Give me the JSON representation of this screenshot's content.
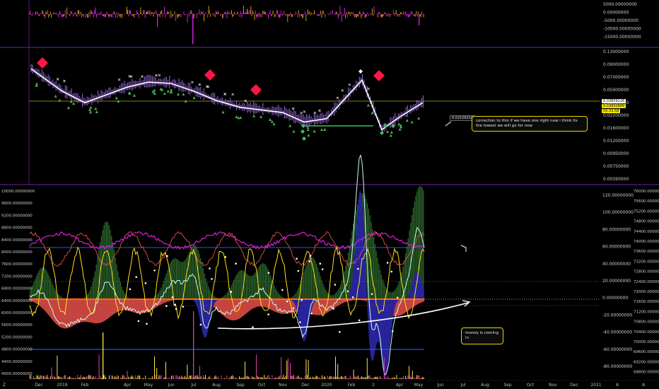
{
  "top_panel": {
    "y_ticks": [
      "5000.00000000",
      "0.00000000",
      "-5000.00000000",
      "-10000.00000000",
      "-15000.00000000"
    ]
  },
  "price_panel": {
    "y_ticks": [
      "0.13000000",
      "0.09000000",
      "0.07000000",
      "0.05000000",
      "0.03000000",
      "0.02200000",
      "0.01600000",
      "0.01200000",
      "0.00950000",
      "0.00750000",
      "0.00590000"
    ],
    "last_price_label": "0.03859126",
    "ma_price_label": "0.03850889",
    "countdown_label": "03:33:58",
    "measure_label": "0.02106316"
  },
  "indicator_panel": {
    "left_ticks": [
      "10000.00000000",
      "9600.00000000",
      "9200.00000000",
      "8800.00000000",
      "8400.00000000",
      "8000.00000000",
      "7600.00000000",
      "7200.00000000",
      "6800.00000000",
      "6400.00000000",
      "6000.00000000",
      "5600.00000000",
      "5200.00000000",
      "4800.00000000",
      "4400.00000000",
      "4000.00000000"
    ],
    "mid_ticks": [
      "120.00000000",
      "100.00000000",
      "80.00000000",
      "60.00000000",
      "40.00000000",
      "20.00000000",
      "0.00000000",
      "-20.00000000",
      "-40.00000000",
      "-60.00000000",
      "-80.00000000"
    ],
    "right_ticks": [
      "76000.00000000",
      "75600.00000000",
      "75200.00000000",
      "74800.00000000",
      "74400.00000000",
      "74000.00000000",
      "73600.00000000",
      "73200.00000000",
      "72800.00000000",
      "72400.00000000",
      "72000.00000000",
      "71600.00000000",
      "71200.00000000",
      "70800.00000000",
      "70400.00000000",
      "70000.00000000",
      "69600.00000000",
      "69200.00000000",
      "68800.00000000"
    ]
  },
  "annotations": {
    "correction_note": "correction to this if we have one right now i think its the lowest we will go for now",
    "money_note": "money is coming in"
  },
  "time_axis": {
    "labels": [
      "Dec",
      "2019",
      "Feb",
      "Apr",
      "May",
      "Jun",
      "Jul",
      "Aug",
      "Sep",
      "Oct",
      "Nov",
      "Dec",
      "2020",
      "Feb",
      "2",
      "Apr",
      "May",
      "Jun",
      "Jul",
      "Aug",
      "Sep",
      "Oct",
      "Nov",
      "Dec",
      "2021"
    ],
    "left_corner": "Z",
    "right_corner_a": "A",
    "right_corner_b": "A"
  },
  "colors": {
    "background": "#000000",
    "separator": "#7a1fa2",
    "magenta": "#e01fe0",
    "gold": "#d8b400",
    "yellow": "#ffef3a",
    "green_area": "#2f6d2f",
    "red_area": "#e8504a",
    "blue_area": "#28239a",
    "cyan": "#c8fff0",
    "red_diamond": "#ff1744",
    "green_marker": "#4caf50",
    "blue_line": "#1e5bd8"
  },
  "chart_data": {
    "type": "line",
    "title": "",
    "x": [
      "Dec",
      "2019",
      "Feb",
      "Apr",
      "May",
      "Jun",
      "Jul",
      "Aug",
      "Sep",
      "Oct",
      "Nov",
      "Dec",
      "2020",
      "Feb",
      "2",
      "Apr",
      "May"
    ],
    "series": [
      {
        "values": [
          0.085,
          0.05,
          0.038,
          0.055,
          0.062,
          0.06,
          0.05,
          0.04,
          0.034,
          0.032,
          0.03,
          0.024,
          0.026,
          0.065,
          0.02,
          0.027,
          0.038
        ]
      }
    ],
    "ylim": [
      0.0059,
      0.13
    ],
    "y_scale": "log",
    "grid": false
  }
}
